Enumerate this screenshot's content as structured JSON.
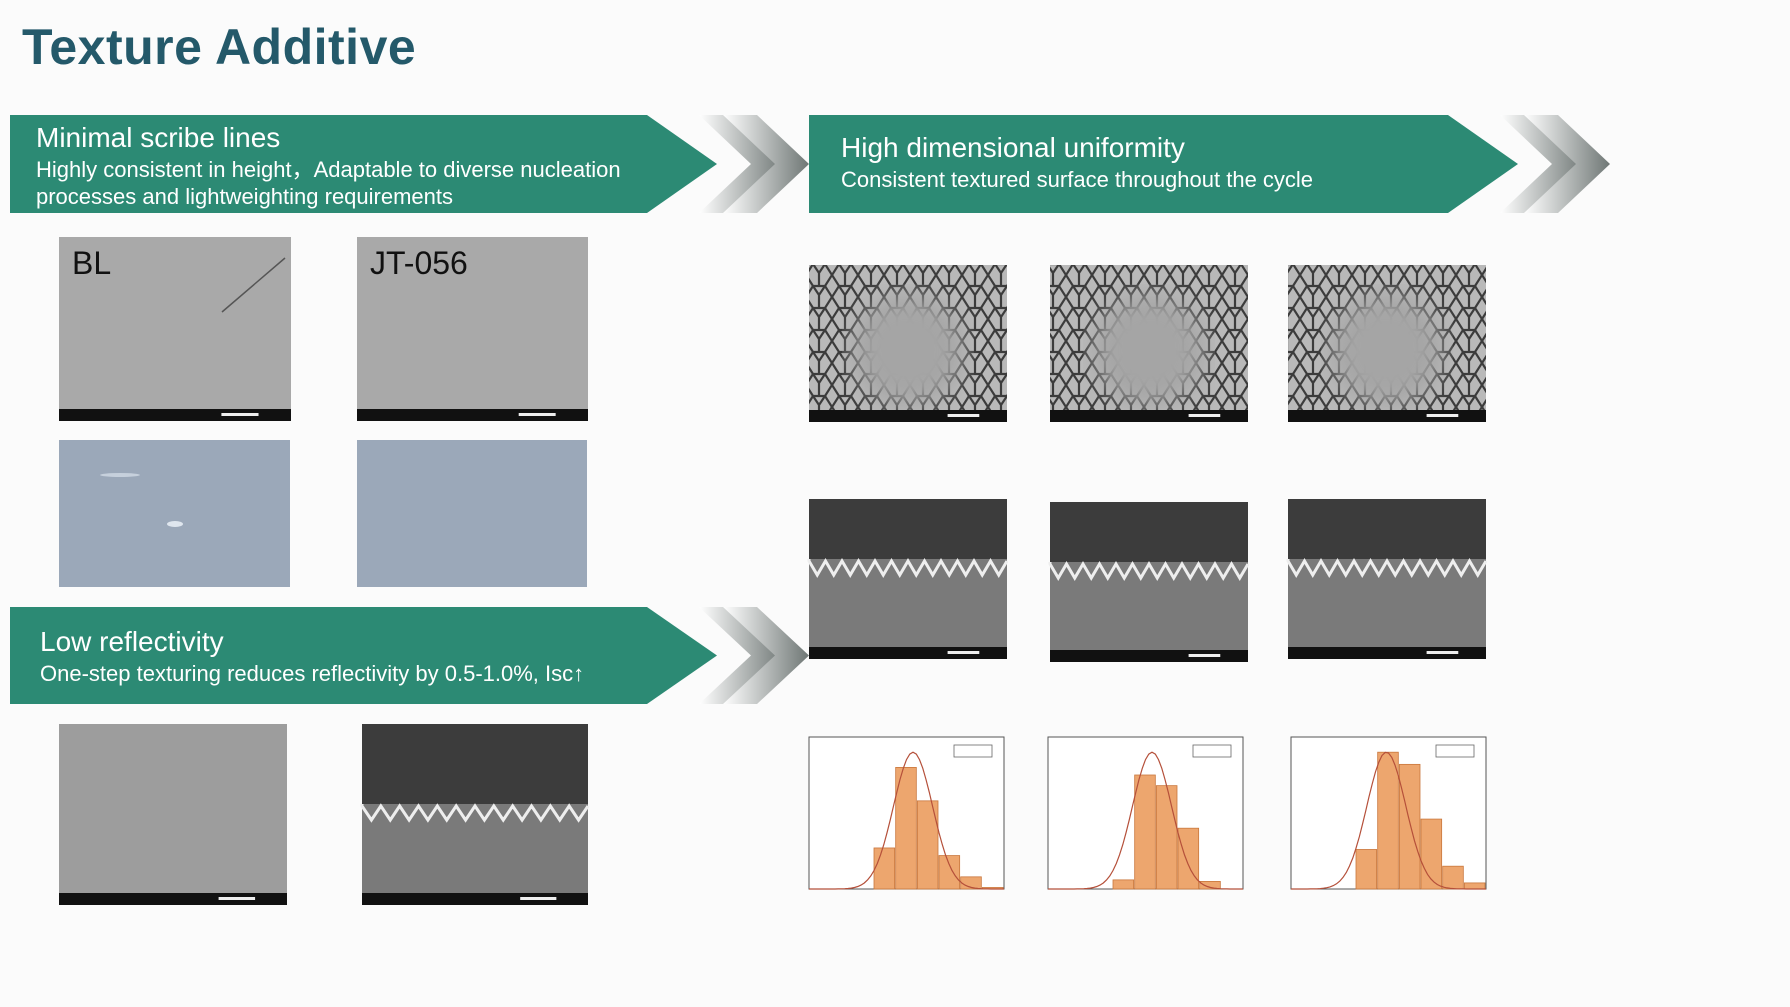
{
  "header": {
    "title": "Texture Additive"
  },
  "panels": [
    {
      "heading": "Minimal scribe lines",
      "text": "Highly consistent in height，Adaptable to diverse nucleation processes and lightweighting requirements"
    },
    {
      "heading": "High dimensional uniformity",
      "text": "Consistent textured surface throughout the cycle"
    },
    {
      "heading": "Low reflectivity",
      "text": "One-step texturing reduces reflectivity by 0.5-1.0%, Isc↑"
    }
  ],
  "images": {
    "labels": [
      "BL",
      "JT-056"
    ]
  }
}
